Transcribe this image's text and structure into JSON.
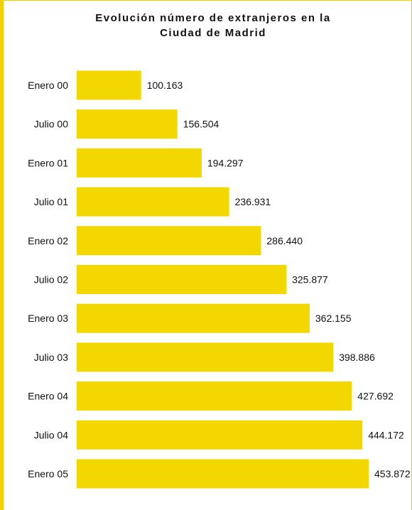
{
  "chart_data": {
    "type": "bar",
    "orientation": "horizontal",
    "title": "Evolución número de extranjeros en la Ciudad de Madrid",
    "title_lines": [
      "Evolución número de extranjeros en la",
      "Ciudad de Madrid"
    ],
    "categories": [
      "Enero 00",
      "Julio 00",
      "Enero 01",
      "Julio 01",
      "Enero 02",
      "Julio 02",
      "Enero 03",
      "Julio 03",
      "Enero 04",
      "Julio 04",
      "Enero 05"
    ],
    "values": [
      100163,
      156504,
      194297,
      236931,
      286440,
      325877,
      362155,
      398886,
      427692,
      444172,
      453872
    ],
    "value_labels": [
      "100.163",
      "156.504",
      "194.297",
      "236.931",
      "286.440",
      "325.877",
      "362.155",
      "398.886",
      "427.692",
      "444.172",
      "453.872"
    ],
    "xlim": [
      0,
      453872
    ],
    "grid": false,
    "legend": "none",
    "colors": {
      "bar": "#f2d800",
      "border": "#f2d000"
    }
  }
}
